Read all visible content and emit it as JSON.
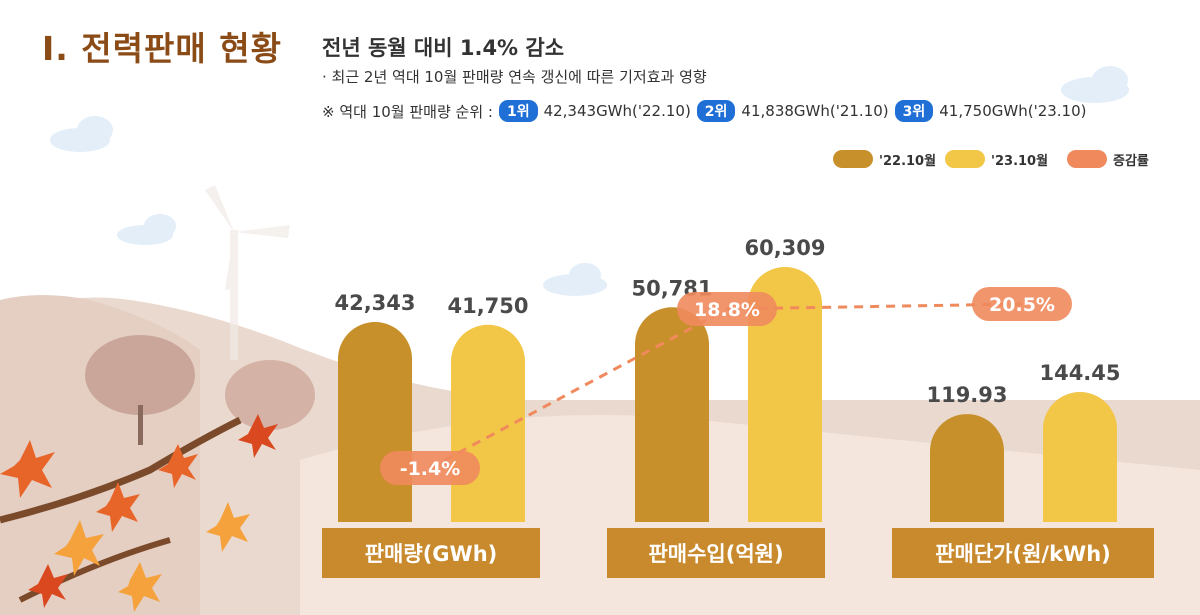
{
  "header": {
    "title": "Ⅰ. 전력판매 현황",
    "subtitle": "전년 동월 대비 1.4% 감소",
    "note1": "· 최근 2년 역대 10월 판매량 연속 갱신에 따른 기저효과 영향",
    "note2_prefix": "※ 역대 10월 판매량 순위 :",
    "ranks": [
      {
        "badge": "1위",
        "text": "42,343GWh('22.10)"
      },
      {
        "badge": "2위",
        "text": "41,838GWh('21.10)"
      },
      {
        "badge": "3위",
        "text": "41,750GWh('23.10)"
      }
    ]
  },
  "colors": {
    "series_2022": "#c8902a",
    "series_2023": "#f2c646",
    "growth": "#f08a5d",
    "category_box": "#c98a2e",
    "rank_badge": "#1f6fd6",
    "title": "#8a4b16"
  },
  "chart_data": {
    "type": "bar",
    "categories": [
      "판매량(GWh)",
      "판매수입(억원)",
      "판매단가(원/kWh)"
    ],
    "series": [
      {
        "name": "'22.10월",
        "values": [
          42343,
          50781,
          119.93
        ],
        "labels": [
          "42,343",
          "50,781",
          "119.93"
        ]
      },
      {
        "name": "'23.10월",
        "values": [
          41750,
          60309,
          144.45
        ],
        "labels": [
          "41,750",
          "60,309",
          "144.45"
        ]
      }
    ],
    "growth": {
      "name": "증감률",
      "values": [
        -1.4,
        18.8,
        20.5
      ],
      "labels": [
        "-1.4%",
        "18.8%",
        "20.5%"
      ]
    },
    "legend_position": "top-right",
    "grid": false
  }
}
